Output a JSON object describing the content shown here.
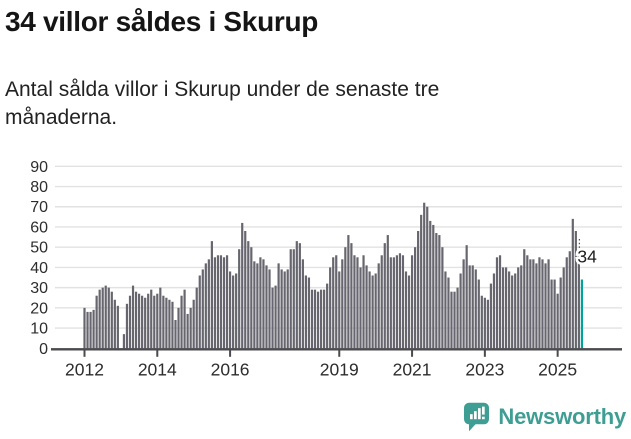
{
  "header": {
    "title": "34 villor såldes i Skurup",
    "subtitle": "Antal sålda villor i Skurup under de senaste tre månaderna."
  },
  "chart_data": {
    "type": "bar",
    "title": "34 villor såldes i Skurup",
    "xlabel": "",
    "ylabel": "",
    "start_month": "2012-01",
    "frequency": "monthly",
    "ylim": [
      0,
      90
    ],
    "ytick_step": 10,
    "ytick_labels": [
      "0",
      "10",
      "20",
      "30",
      "40",
      "50",
      "60",
      "70",
      "80",
      "90"
    ],
    "xtick_years": [
      2012,
      2014,
      2016,
      2019,
      2021,
      2023,
      2025
    ],
    "grid": "horizontal",
    "values": [
      20,
      18,
      18,
      19,
      26,
      29,
      30,
      31,
      30,
      28,
      24,
      21,
      0,
      7,
      22,
      26,
      31,
      28,
      27,
      26,
      25,
      27,
      29,
      26,
      27,
      30,
      26,
      25,
      24,
      23,
      14,
      20,
      26,
      29,
      17,
      20,
      24,
      30,
      36,
      39,
      42,
      44,
      53,
      45,
      46,
      46,
      45,
      46,
      38,
      36,
      37,
      49,
      62,
      58,
      53,
      50,
      43,
      42,
      45,
      44,
      41,
      39,
      30,
      31,
      42,
      39,
      38,
      39,
      49,
      49,
      53,
      52,
      44,
      36,
      35,
      29,
      29,
      28,
      29,
      29,
      32,
      40,
      45,
      46,
      38,
      44,
      50,
      56,
      52,
      46,
      45,
      40,
      46,
      41,
      38,
      36,
      37,
      42,
      46,
      52,
      56,
      45,
      45,
      46,
      47,
      46,
      38,
      36,
      46,
      50,
      58,
      66,
      72,
      70,
      63,
      61,
      57,
      56,
      50,
      38,
      35,
      28,
      28,
      30,
      37,
      44,
      51,
      41,
      41,
      39,
      34,
      26,
      25,
      24,
      32,
      37,
      45,
      46,
      40,
      40,
      38,
      36,
      37,
      40,
      41,
      49,
      46,
      44,
      44,
      42,
      45,
      44,
      42,
      44,
      34,
      34,
      27,
      35,
      40,
      45,
      48,
      64,
      58,
      46,
      34
    ],
    "highlight_index": 164,
    "highlight_value": 34,
    "annotation_label": "34",
    "legend": "none"
  },
  "colors": {
    "bar": "#67666e",
    "highlight": "#00a29b",
    "grid": "#e2e2e2",
    "axis": "#4a4a4f",
    "tick_text": "#2d2d2d",
    "annotation_text": "#1d1d1d",
    "brand": "#3f9e93"
  },
  "footer": {
    "brand": "Newsworthy",
    "logo_icon": "newsworthy-speech-bubble-bar-chart-icon"
  }
}
